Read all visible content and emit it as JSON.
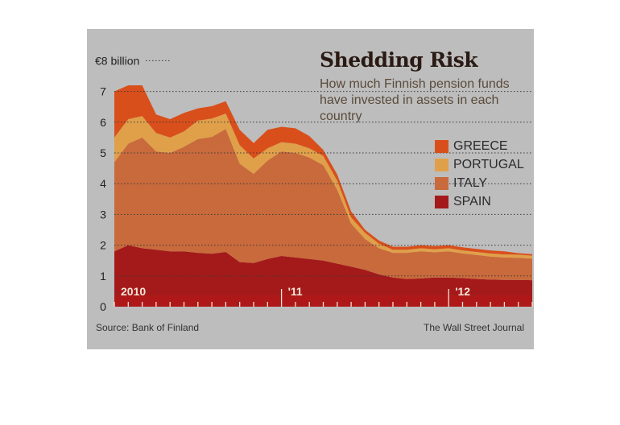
{
  "chart_data": {
    "type": "area",
    "stacked": true,
    "title": "Shedding Risk",
    "subtitle": "How much Finnish pension funds have invested in assets in each country",
    "unit_label": "€8 billion",
    "y_tick_labels": [
      "0",
      "1",
      "2",
      "3",
      "4",
      "5",
      "6",
      "7"
    ],
    "ylim": [
      0,
      8
    ],
    "x_labels": [
      "2010",
      "'11",
      "'12"
    ],
    "x_label_months": [
      0,
      12,
      24
    ],
    "months": [
      0,
      1,
      2,
      3,
      4,
      5,
      6,
      7,
      8,
      9,
      10,
      11,
      12,
      13,
      14,
      15,
      16,
      17,
      18,
      19,
      20,
      21,
      22,
      23,
      24,
      25,
      26,
      27,
      28,
      29,
      30
    ],
    "series": [
      {
        "name": "SPAIN",
        "color": "#a41a1a",
        "values": [
          1.8,
          2.0,
          1.9,
          1.85,
          1.8,
          1.8,
          1.75,
          1.72,
          1.78,
          1.45,
          1.42,
          1.55,
          1.65,
          1.6,
          1.55,
          1.5,
          1.4,
          1.3,
          1.2,
          1.05,
          0.95,
          0.9,
          0.92,
          0.95,
          0.95,
          0.93,
          0.9,
          0.88,
          0.87,
          0.87,
          0.86
        ]
      },
      {
        "name": "ITALY",
        "color": "#c96a3c",
        "values": [
          2.9,
          3.3,
          3.6,
          3.2,
          3.2,
          3.4,
          3.7,
          3.8,
          4.0,
          3.2,
          2.9,
          3.2,
          3.4,
          3.4,
          3.3,
          3.1,
          2.4,
          1.4,
          1.0,
          0.85,
          0.8,
          0.85,
          0.88,
          0.82,
          0.85,
          0.8,
          0.78,
          0.75,
          0.73,
          0.72,
          0.7
        ]
      },
      {
        "name": "PORTUGAL",
        "color": "#e0a04a",
        "values": [
          0.8,
          0.8,
          0.7,
          0.6,
          0.5,
          0.5,
          0.6,
          0.6,
          0.5,
          0.6,
          0.5,
          0.4,
          0.3,
          0.3,
          0.3,
          0.3,
          0.3,
          0.2,
          0.2,
          0.15,
          0.1,
          0.1,
          0.1,
          0.1,
          0.1,
          0.1,
          0.1,
          0.1,
          0.1,
          0.1,
          0.1
        ]
      },
      {
        "name": "GREECE",
        "color": "#d94f1c",
        "values": [
          1.5,
          1.1,
          1.0,
          0.6,
          0.6,
          0.6,
          0.4,
          0.4,
          0.4,
          0.5,
          0.5,
          0.6,
          0.5,
          0.5,
          0.4,
          0.2,
          0.2,
          0.2,
          0.1,
          0.1,
          0.1,
          0.1,
          0.1,
          0.1,
          0.1,
          0.1,
          0.1,
          0.1,
          0.1,
          0.05,
          0.05
        ]
      }
    ],
    "legend_order": [
      "GREECE",
      "PORTUGAL",
      "ITALY",
      "SPAIN"
    ],
    "legend_placement": "right",
    "grid": "dotted horizontal"
  },
  "labels": {
    "source": "Source: Bank of Finland",
    "credit": "The Wall Street Journal"
  },
  "colors": {
    "background": "#bdbdbd",
    "grid": "#3a3a3a",
    "baseline_band": "#b81818"
  }
}
